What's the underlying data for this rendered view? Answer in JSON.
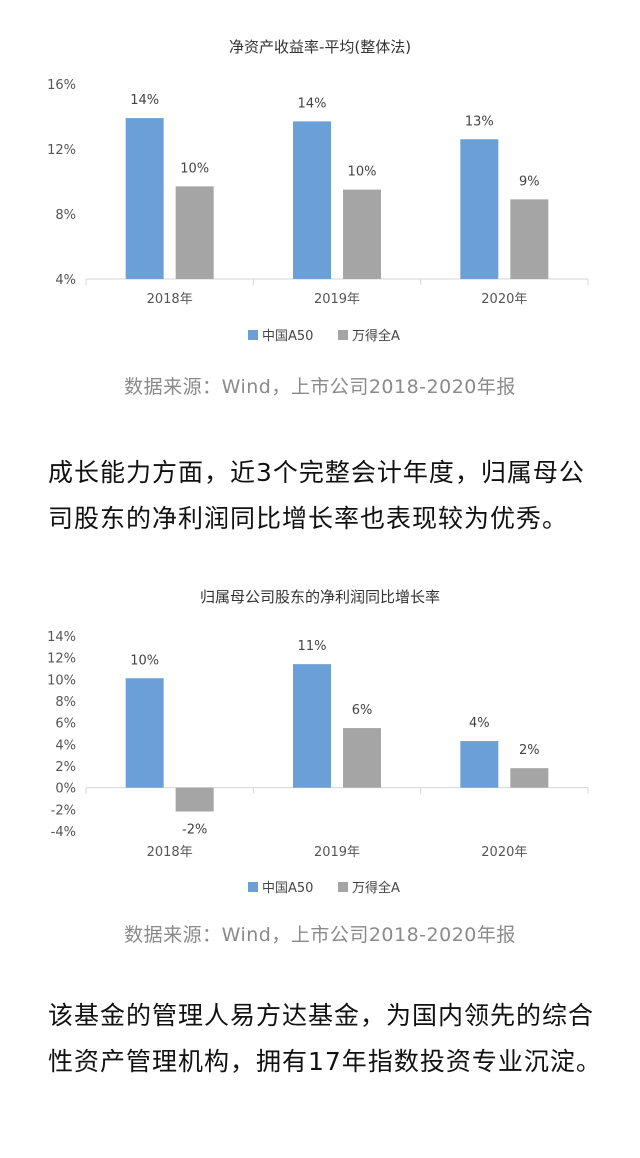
{
  "chart_data": [
    {
      "type": "bar",
      "title": "净资产收益率-平均(整体法)",
      "categories": [
        "2018年",
        "2019年",
        "2020年"
      ],
      "series": [
        {
          "name": "中国A50",
          "values": [
            14,
            14,
            13
          ],
          "labels": [
            "14%",
            "14%",
            "13%"
          ],
          "actual": [
            13.9,
            13.7,
            12.6
          ],
          "color": "#6a9fd8"
        },
        {
          "name": "万得全A",
          "values": [
            10,
            10,
            9
          ],
          "labels": [
            "10%",
            "10%",
            "9%"
          ],
          "actual": [
            9.7,
            9.5,
            8.9
          ],
          "color": "#a5a5a5"
        }
      ],
      "yticks": [
        "4%",
        "8%",
        "12%",
        "16%"
      ],
      "ylim": [
        4,
        16
      ],
      "xlabel": "",
      "ylabel": "",
      "legend": "bottom-center"
    },
    {
      "type": "bar",
      "title": "归属母公司股东的净利润同比增长率",
      "categories": [
        "2018年",
        "2019年",
        "2020年"
      ],
      "series": [
        {
          "name": "中国A50",
          "values": [
            10,
            11,
            4
          ],
          "labels": [
            "10%",
            "11%",
            "4%"
          ],
          "actual": [
            10.1,
            11.4,
            4.3
          ],
          "color": "#6a9fd8"
        },
        {
          "name": "万得全A",
          "values": [
            -2,
            6,
            2
          ],
          "labels": [
            "-2%",
            "6%",
            "2%"
          ],
          "actual": [
            -2.2,
            5.5,
            1.8
          ],
          "color": "#a5a5a5"
        }
      ],
      "yticks": [
        "-4%",
        "-2%",
        "0%",
        "2%",
        "4%",
        "6%",
        "8%",
        "10%",
        "12%",
        "14%"
      ],
      "ylim": [
        -4,
        14
      ],
      "xlabel": "",
      "ylabel": "",
      "legend": "bottom-center"
    }
  ],
  "source_1": "数据来源：Wind，上市公司2018-2020年报",
  "paragraph_1": "成长能力方面，近3个完整会计年度，归属母公司股东的净利润同比增长率也表现较为优秀。",
  "source_2": "数据来源：Wind，上市公司2018-2020年报",
  "paragraph_2": "该基金的管理人易方达基金，为国内领先的综合性资产管理机构，拥有17年指数投资专业沉淀。"
}
